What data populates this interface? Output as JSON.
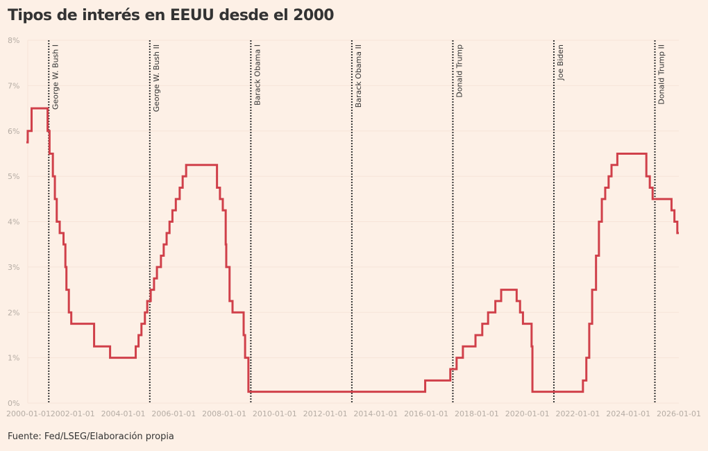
{
  "title": "Tipos de interés en EEUU desde el 2000",
  "source": "Fuente: Fed/LSEG/Elaboración propia",
  "chart_data": {
    "type": "line",
    "step": true,
    "title": "Tipos de interés en EEUU desde el 2000",
    "xlabel": "",
    "ylabel": "",
    "xlim": [
      "2000-01-01",
      "2026-01-01"
    ],
    "ylim": [
      0,
      8
    ],
    "grid": true,
    "line_color": "#d0404a",
    "x_tick_labels": [
      "2000-01-01",
      "2002-01-01",
      "2004-01-01",
      "2006-01-01",
      "2008-01-01",
      "2010-01-01",
      "2012-01-01",
      "2014-01-01",
      "2016-01-01",
      "2018-01-01",
      "2020-01-01",
      "2022-01-01",
      "2024-01-01",
      "2026-01-01"
    ],
    "y_tick_labels": [
      "0%",
      "1%",
      "2%",
      "3%",
      "4%",
      "5%",
      "6%",
      "7%",
      "8%"
    ],
    "series": [
      {
        "x": [
          "2000-03-01",
          "2000-03-21",
          "2000-05-16",
          "2001-01-03",
          "2001-01-31",
          "2001-03-20",
          "2001-04-18",
          "2001-05-15",
          "2001-06-27",
          "2001-08-21",
          "2001-09-17",
          "2001-10-02",
          "2001-11-06",
          "2001-12-11",
          "2002-11-06",
          "2003-06-25",
          "2004-06-30",
          "2004-08-10",
          "2004-09-21",
          "2004-11-10",
          "2004-12-14",
          "2005-02-02",
          "2005-03-22",
          "2005-05-03",
          "2005-06-30",
          "2005-08-09",
          "2005-09-20",
          "2005-11-01",
          "2005-12-13",
          "2006-01-31",
          "2006-03-28",
          "2006-05-10",
          "2006-06-29",
          "2007-09-18",
          "2007-10-31",
          "2007-12-11",
          "2008-01-22",
          "2008-01-30",
          "2008-03-18",
          "2008-04-30",
          "2008-10-08",
          "2008-10-29",
          "2008-12-16",
          "2015-12-16",
          "2016-12-14",
          "2017-03-15",
          "2017-06-14",
          "2017-12-13",
          "2018-03-21",
          "2018-06-13",
          "2018-09-26",
          "2018-12-19",
          "2019-07-31",
          "2019-09-18",
          "2019-10-30",
          "2020-03-03",
          "2020-03-15",
          "2022-03-16",
          "2022-05-04",
          "2022-06-15",
          "2022-07-27",
          "2022-09-21",
          "2022-11-02",
          "2022-12-14",
          "2023-02-01",
          "2023-03-22",
          "2023-05-03",
          "2023-07-26",
          "2024-09-18",
          "2024-11-07",
          "2024-12-18",
          "2025-09-17",
          "2025-10-29",
          "2025-12-10",
          "2026-01-01"
        ],
        "y": [
          5.75,
          6.0,
          6.5,
          6.0,
          5.5,
          5.0,
          4.5,
          4.0,
          3.75,
          3.5,
          3.0,
          2.5,
          2.0,
          1.75,
          1.25,
          1.0,
          1.25,
          1.5,
          1.75,
          2.0,
          2.25,
          2.5,
          2.75,
          3.0,
          3.25,
          3.5,
          3.75,
          4.0,
          4.25,
          4.5,
          4.75,
          5.0,
          5.25,
          4.75,
          4.5,
          4.25,
          3.5,
          3.0,
          2.25,
          2.0,
          1.5,
          1.0,
          0.25,
          0.5,
          0.75,
          1.0,
          1.25,
          1.5,
          1.75,
          2.0,
          2.25,
          2.5,
          2.25,
          2.0,
          1.75,
          1.25,
          0.25,
          0.5,
          1.0,
          1.75,
          2.5,
          3.25,
          4.0,
          4.5,
          4.75,
          5.0,
          5.25,
          5.5,
          5.0,
          4.75,
          4.5,
          4.25,
          4.0,
          3.75,
          3.75
        ]
      }
    ],
    "annotations": [
      {
        "date": "2001-01-20",
        "label": "George W. Bush I"
      },
      {
        "date": "2005-01-20",
        "label": "George W. Bush II"
      },
      {
        "date": "2009-01-20",
        "label": "Barack Obama I"
      },
      {
        "date": "2013-01-20",
        "label": "Barack Obama II"
      },
      {
        "date": "2017-01-20",
        "label": "Donald Trump"
      },
      {
        "date": "2021-01-20",
        "label": "Joe Biden"
      },
      {
        "date": "2025-01-20",
        "label": "Donald Trump II"
      }
    ]
  }
}
